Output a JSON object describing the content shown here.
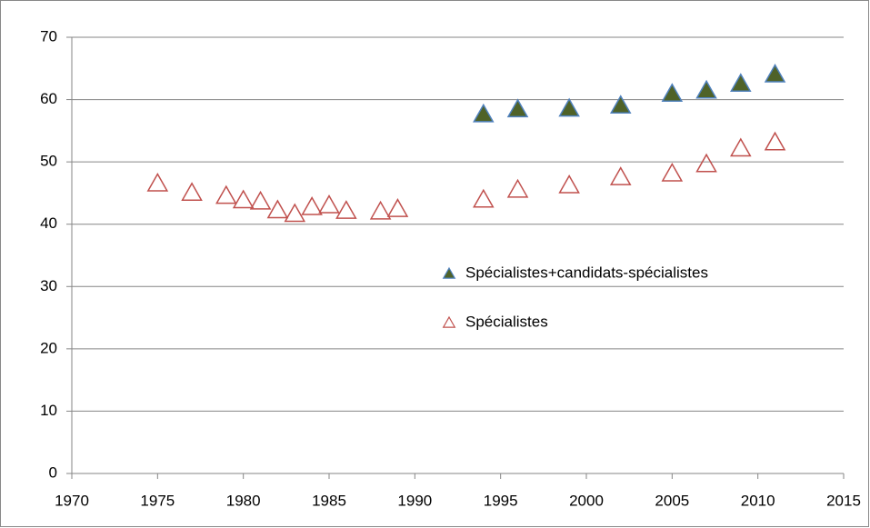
{
  "chart_data": {
    "type": "scatter",
    "series": [
      {
        "name": "Spécialistes+candidats-spécialistes",
        "color": "#4f6228",
        "edge": "#4f81bd",
        "x": [
          1994,
          1996,
          1999,
          2002,
          2005,
          2007,
          2009,
          2011
        ],
        "values": [
          57.7,
          58.5,
          58.6,
          59.1,
          61,
          61.5,
          62.6,
          64.1
        ]
      },
      {
        "name": "Spécialistes",
        "color": "none",
        "edge": "#c0504d",
        "x": [
          1975,
          1977,
          1979,
          1980,
          1981,
          1982,
          1983,
          1984,
          1985,
          1986,
          1988,
          1989,
          1994,
          1996,
          1999,
          2002,
          2005,
          2007,
          2009,
          2011
        ],
        "values": [
          46.6,
          45.1,
          44.6,
          43.9,
          43.7,
          42.3,
          41.7,
          42.8,
          43.1,
          42.2,
          42.1,
          42.5,
          44,
          45.6,
          46.3,
          47.6,
          48.2,
          49.7,
          52.2,
          53.2
        ]
      }
    ],
    "xlim": [
      1970,
      2015
    ],
    "xticks": [
      1970,
      1975,
      1980,
      1985,
      1990,
      1995,
      2000,
      2005,
      2010,
      2015
    ],
    "ylim": [
      0,
      70
    ],
    "yticks": [
      0,
      10,
      20,
      30,
      40,
      50,
      60,
      70
    ],
    "grid": true,
    "legend": "right"
  }
}
